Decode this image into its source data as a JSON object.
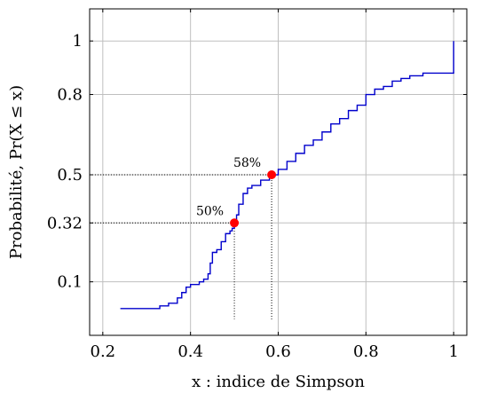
{
  "chart_data": {
    "type": "line",
    "title": "",
    "xlabel": "x : indice de Simpson",
    "ylabel": "Probabilité, Pr(X ≤ x)",
    "xlim": [
      0.17,
      1.03
    ],
    "ylim": [
      -0.1,
      1.12
    ],
    "grid": true,
    "x_ticks": [
      0.2,
      0.4,
      0.6,
      0.8,
      1
    ],
    "x_tick_labels": [
      "0.2",
      "0.4",
      "0.6",
      "0.8",
      "1"
    ],
    "y_ticks": [
      0.1,
      0.32,
      0.5,
      0.8,
      1
    ],
    "y_tick_labels": [
      "0.1",
      "0.32",
      "0.5",
      "0.8",
      "1"
    ],
    "series": [
      {
        "color": "#0000cc",
        "x": [
          0.24,
          0.33,
          0.35,
          0.37,
          0.38,
          0.39,
          0.4,
          0.42,
          0.43,
          0.44,
          0.445,
          0.45,
          0.46,
          0.47,
          0.48,
          0.49,
          0.495,
          0.5,
          0.505,
          0.51,
          0.52,
          0.53,
          0.54,
          0.56,
          0.58,
          0.585,
          0.6,
          0.62,
          0.64,
          0.66,
          0.68,
          0.7,
          0.72,
          0.74,
          0.76,
          0.78,
          0.8,
          0.82,
          0.84,
          0.86,
          0.88,
          0.9,
          0.93,
          0.96,
          1.0,
          1.0
        ],
        "y": [
          0.0,
          0.01,
          0.02,
          0.04,
          0.06,
          0.08,
          0.09,
          0.1,
          0.11,
          0.13,
          0.17,
          0.21,
          0.22,
          0.25,
          0.28,
          0.29,
          0.3,
          0.32,
          0.35,
          0.39,
          0.43,
          0.45,
          0.46,
          0.48,
          0.5,
          0.5,
          0.52,
          0.55,
          0.58,
          0.61,
          0.63,
          0.66,
          0.69,
          0.71,
          0.74,
          0.76,
          0.8,
          0.82,
          0.83,
          0.85,
          0.86,
          0.87,
          0.88,
          0.88,
          0.89,
          1.0
        ]
      }
    ],
    "points": [
      {
        "x": 0.5,
        "y": 0.32,
        "label": "50%"
      },
      {
        "x": 0.585,
        "y": 0.5,
        "label": "58%"
      }
    ],
    "point_color": "#ff0000"
  }
}
